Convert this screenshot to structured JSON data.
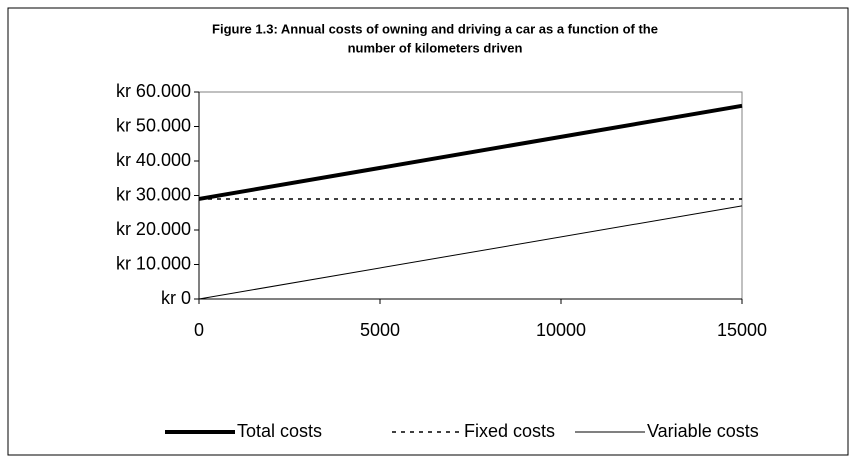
{
  "chart_data": {
    "type": "line",
    "title": "Figure 1.3: Annual costs of owning and driving a car as a function of the number of kilometers driven",
    "title_lines": [
      "Figure 1.3: Annual costs of owning and driving a car as a function of the",
      "number of kilometers driven"
    ],
    "x": [
      0,
      15000
    ],
    "series": [
      {
        "name": "Total costs",
        "color": "#000000",
        "style": "thick",
        "values": [
          29000,
          56000
        ]
      },
      {
        "name": "Fixed costs",
        "color": "#000000",
        "style": "dashed",
        "values": [
          29000,
          29000
        ]
      },
      {
        "name": "Variable costs",
        "color": "#000000",
        "style": "thin",
        "values": [
          0,
          27000
        ]
      }
    ],
    "xlim": [
      0,
      15000
    ],
    "xticks": [
      0,
      5000,
      10000,
      15000
    ],
    "ylim": [
      0,
      60000
    ],
    "yticks": [
      {
        "value": 0,
        "label": "kr 0"
      },
      {
        "value": 10000,
        "label": "kr 10.000"
      },
      {
        "value": 20000,
        "label": "kr 20.000"
      },
      {
        "value": 30000,
        "label": "kr 30.000"
      },
      {
        "value": 40000,
        "label": "kr 40.000"
      },
      {
        "value": 50000,
        "label": "kr 50.000"
      },
      {
        "value": 60000,
        "label": "kr 60.000"
      }
    ],
    "legend": "bottom"
  }
}
